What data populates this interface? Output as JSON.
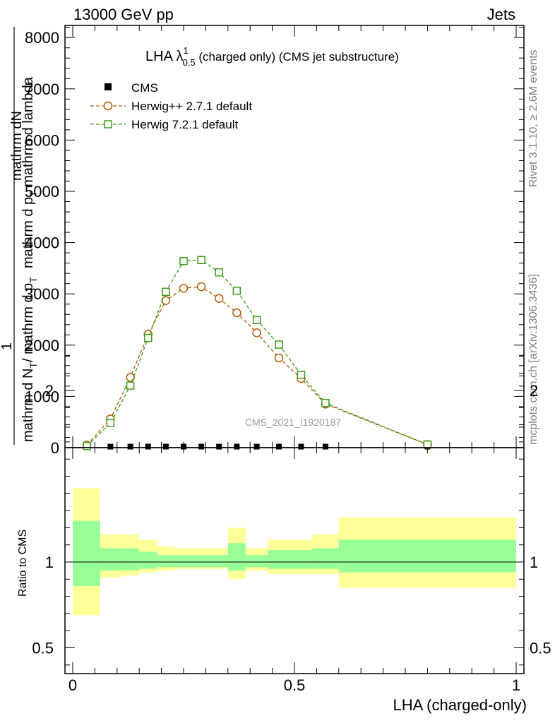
{
  "header": {
    "left": "13000 GeV pp",
    "right": "Jets"
  },
  "side_labels": {
    "rivet": "Rivet 3.1.10, ≥ 2.6M events",
    "mcplots": "mcplots.cern.ch [arXiv:1306.3436]"
  },
  "watermark": "CMS_2021_I1920187",
  "main_title": {
    "prefix": "LHA λ",
    "sup": "1",
    "sub": "0.5",
    "suffix": " (charged only) (CMS jet substructure)"
  },
  "main_ylabel": {
    "num1": "mathrm dN",
    "num2": "mathrm d p",
    "num2_sub": "T",
    "num3": " mathrm d lambda",
    "one": "1",
    "den1": "mathrm d N",
    "den1_sub": "T",
    "den2": "/ mathrm d p",
    "den2_sub": "T"
  },
  "ratio_ylabel": "Ratio to CMS",
  "xlabel": "LHA (charged-only)",
  "colors": {
    "herwigpp": "#b35900",
    "herwig7": "#3c9c16",
    "band_inner": "#99ff99",
    "band_outer": "#ffff99",
    "cms": "#000000"
  },
  "chart_data": [
    {
      "type": "line",
      "title": "LHA λ^1_0.5 (charged only) (CMS jet substructure)",
      "xlabel": "LHA (charged-only)",
      "ylabel": "1/(d N/d p_T) d N/(d p_T d lambda)",
      "xlim": [
        0,
        1
      ],
      "ylim": [
        0,
        8300
      ],
      "x_ticks": [
        "0",
        "0.5",
        "1"
      ],
      "y_ticks": [
        "0",
        "1000",
        "2000",
        "3000",
        "4000",
        "5000",
        "6000",
        "7000",
        "8000"
      ],
      "legend_position": "top-left",
      "series": [
        {
          "name": "CMS",
          "marker": "filled-square",
          "x": [
            0.032,
            0.085,
            0.13,
            0.17,
            0.21,
            0.25,
            0.29,
            0.33,
            0.37,
            0.415,
            0.465,
            0.515,
            0.57,
            0.8
          ],
          "y": [
            20,
            20,
            20,
            20,
            20,
            20,
            20,
            20,
            20,
            20,
            20,
            20,
            20,
            20
          ]
        },
        {
          "name": "Herwig++ 2.7.1 default",
          "marker": "open-circle",
          "x": [
            0.032,
            0.085,
            0.13,
            0.17,
            0.21,
            0.25,
            0.29,
            0.33,
            0.37,
            0.415,
            0.465,
            0.515,
            0.57,
            0.8
          ],
          "y": [
            50,
            560,
            1370,
            2210,
            2870,
            3110,
            3140,
            2910,
            2630,
            2240,
            1750,
            1350,
            850,
            60
          ]
        },
        {
          "name": "Herwig 7.2.1 default",
          "marker": "open-square",
          "x": [
            0.032,
            0.085,
            0.13,
            0.17,
            0.21,
            0.25,
            0.29,
            0.33,
            0.37,
            0.415,
            0.465,
            0.515,
            0.57,
            0.8
          ],
          "y": [
            30,
            480,
            1210,
            2140,
            3040,
            3640,
            3660,
            3420,
            3060,
            2490,
            2010,
            1420,
            870,
            60
          ]
        }
      ]
    },
    {
      "type": "area",
      "ylabel": "Ratio to CMS",
      "xlabel": "LHA (charged-only)",
      "xlim": [
        0,
        1
      ],
      "ylim": [
        0.35,
        2.25
      ],
      "x_ticks": [
        "0",
        "0.5",
        "1"
      ],
      "y_ticks": [
        "0.5",
        "1",
        "2"
      ],
      "reference_line": 1,
      "bins": [
        {
          "x": [
            0.0,
            0.062
          ],
          "inner": [
            0.86,
            1.24
          ],
          "outer": [
            0.69,
            1.43
          ]
        },
        {
          "x": [
            0.062,
            0.11
          ],
          "inner": [
            0.95,
            1.08
          ],
          "outer": [
            0.91,
            1.16
          ]
        },
        {
          "x": [
            0.11,
            0.15
          ],
          "inner": [
            0.95,
            1.08
          ],
          "outer": [
            0.92,
            1.16
          ]
        },
        {
          "x": [
            0.15,
            0.19
          ],
          "inner": [
            0.96,
            1.06
          ],
          "outer": [
            0.94,
            1.13
          ]
        },
        {
          "x": [
            0.19,
            0.23
          ],
          "inner": [
            0.97,
            1.04
          ],
          "outer": [
            0.95,
            1.09
          ]
        },
        {
          "x": [
            0.23,
            0.35
          ],
          "inner": [
            0.97,
            1.04
          ],
          "outer": [
            0.96,
            1.08
          ]
        },
        {
          "x": [
            0.35,
            0.39
          ],
          "inner": [
            0.95,
            1.11
          ],
          "outer": [
            0.9,
            1.2
          ]
        },
        {
          "x": [
            0.39,
            0.44
          ],
          "inner": [
            0.97,
            1.04
          ],
          "outer": [
            0.95,
            1.08
          ]
        },
        {
          "x": [
            0.44,
            0.54
          ],
          "inner": [
            0.96,
            1.07
          ],
          "outer": [
            0.93,
            1.13
          ]
        },
        {
          "x": [
            0.54,
            0.6
          ],
          "inner": [
            0.96,
            1.08
          ],
          "outer": [
            0.93,
            1.16
          ]
        },
        {
          "x": [
            0.6,
            1.0
          ],
          "inner": [
            0.94,
            1.13
          ],
          "outer": [
            0.85,
            1.26
          ]
        }
      ]
    }
  ]
}
